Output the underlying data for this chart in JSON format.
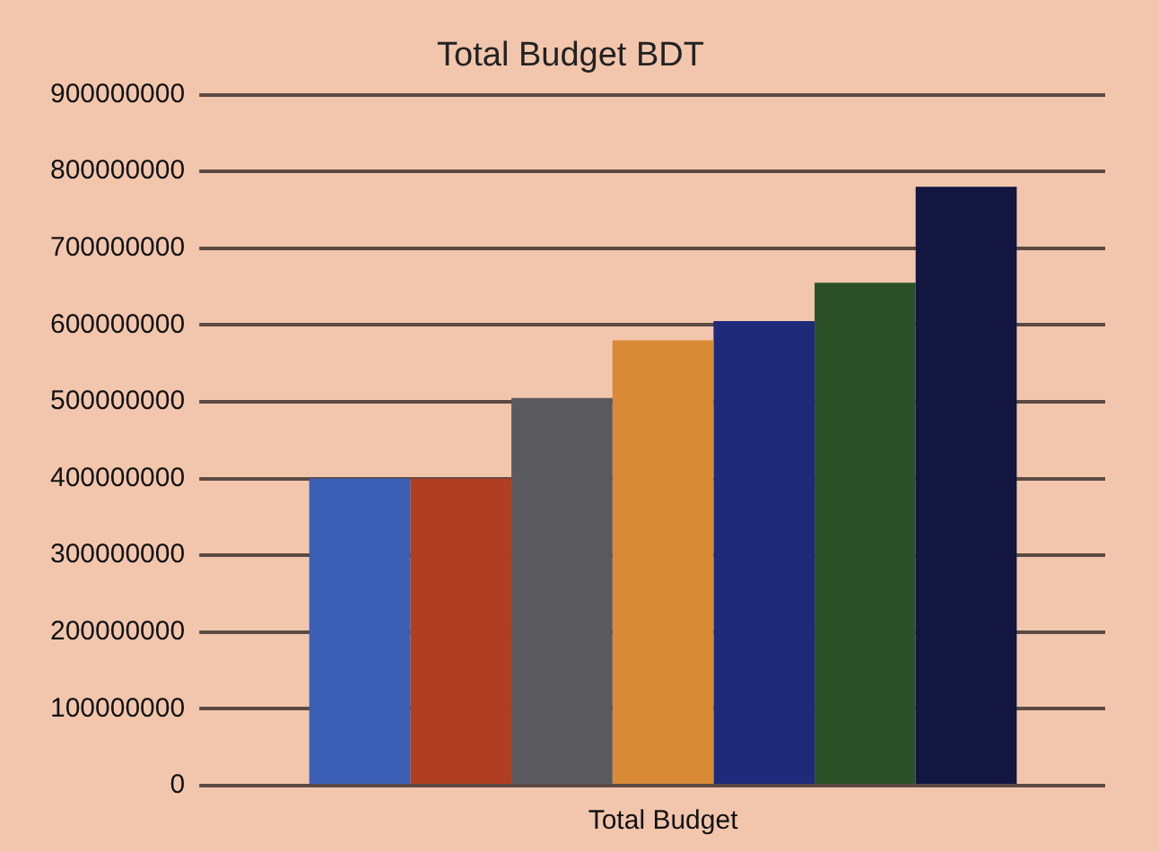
{
  "chart_data": {
    "type": "bar",
    "title": "Total Budget BDT",
    "categories": [
      "Total Budget"
    ],
    "series": [
      {
        "color": "#3b5fb5",
        "values": [
          400000000
        ]
      },
      {
        "color": "#b03e22",
        "values": [
          400000000
        ]
      },
      {
        "color": "#5a5a5e",
        "values": [
          505000000
        ]
      },
      {
        "color": "#d88a35",
        "values": [
          580000000
        ]
      },
      {
        "color": "#1f2a7a",
        "values": [
          605000000
        ]
      },
      {
        "color": "#2c5128",
        "values": [
          655000000
        ]
      },
      {
        "color": "#121640",
        "values": [
          780000000
        ]
      }
    ],
    "ylim": [
      0,
      900000000
    ],
    "yticks": [
      0,
      100000000,
      200000000,
      300000000,
      400000000,
      500000000,
      600000000,
      700000000,
      800000000,
      900000000
    ],
    "grid": "y",
    "legend": false
  }
}
